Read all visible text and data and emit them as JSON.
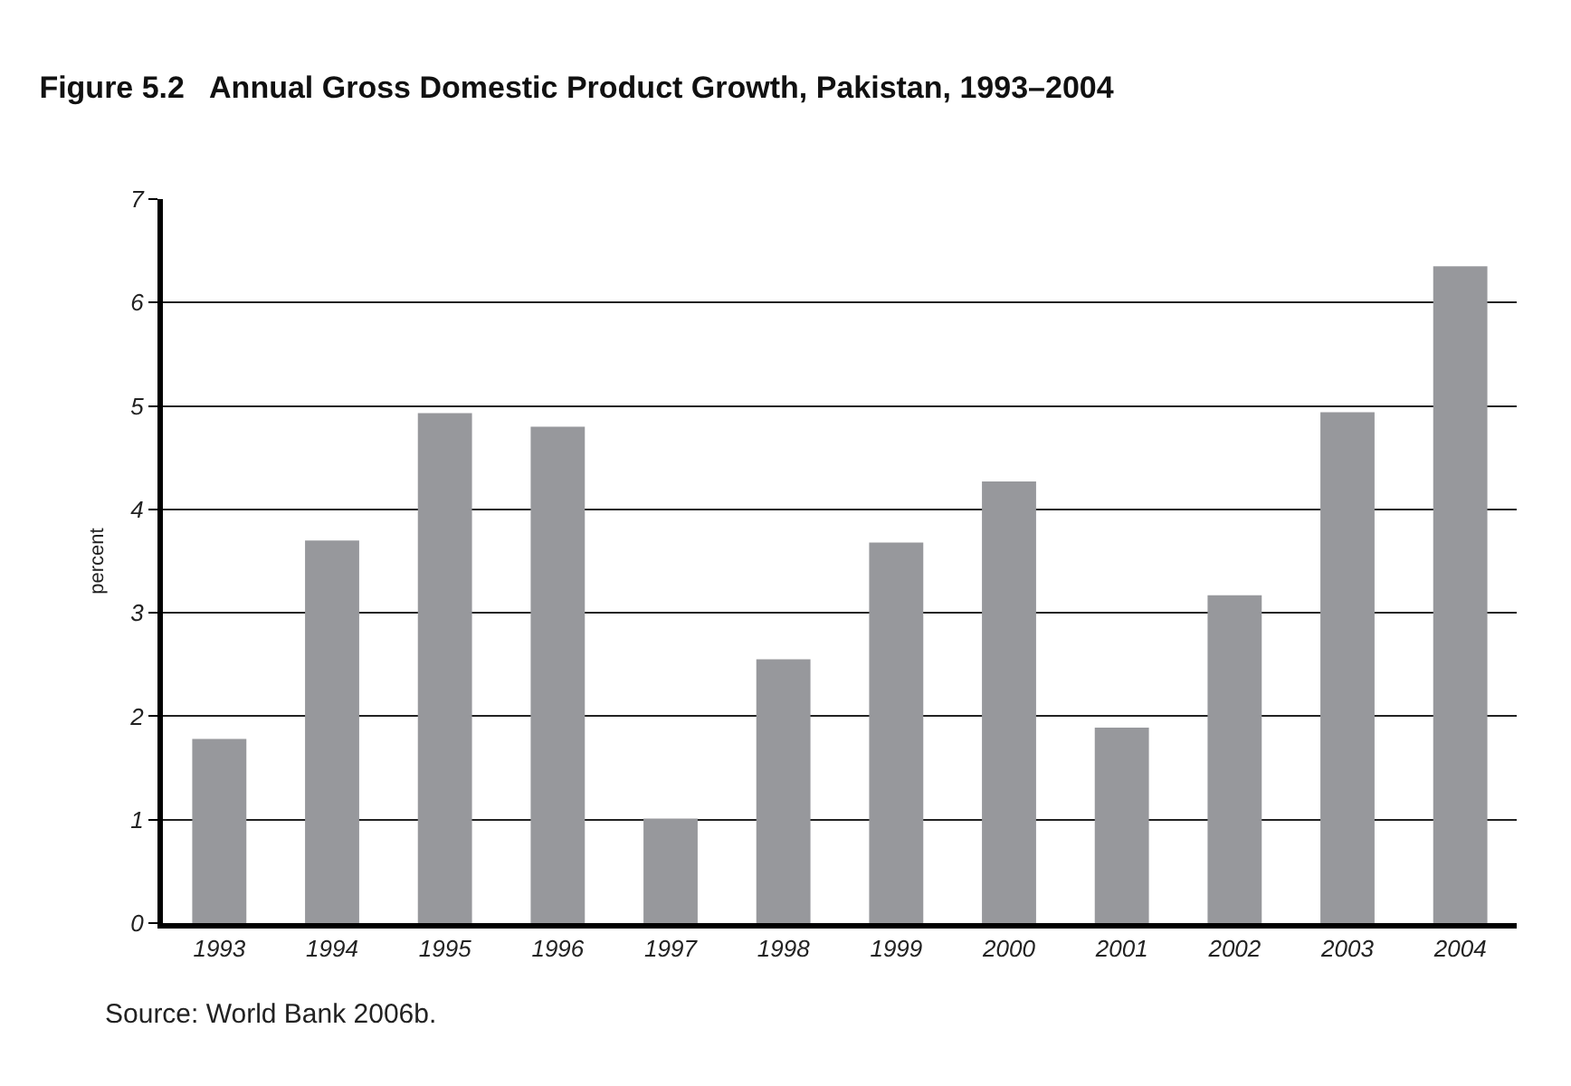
{
  "chart_data": {
    "type": "bar",
    "title": "Figure 5.2   Annual Gross Domestic Product Growth, Pakistan, 1993–2004",
    "ylabel": "percent",
    "categories": [
      "1993",
      "1994",
      "1995",
      "1996",
      "1997",
      "1998",
      "1999",
      "2000",
      "2001",
      "2002",
      "2003",
      "2004"
    ],
    "values": [
      1.78,
      3.7,
      4.93,
      4.8,
      1.01,
      2.55,
      3.68,
      4.27,
      1.89,
      3.17,
      4.94,
      6.35
    ],
    "color": "#97989c",
    "ylim": [
      0,
      7
    ],
    "yticks": [
      0,
      1,
      2,
      3,
      4,
      5,
      6,
      7
    ],
    "grid": "y",
    "legend": false,
    "annotations": [
      "Source: World Bank 2006b."
    ]
  }
}
